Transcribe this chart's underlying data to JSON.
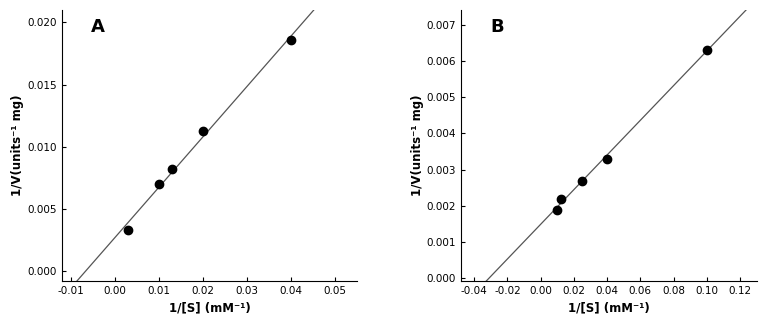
{
  "panel_A": {
    "label": "A",
    "points_x": [
      0.003,
      0.01,
      0.013,
      0.02,
      0.04
    ],
    "points_y": [
      0.0033,
      0.007,
      0.0082,
      0.0113,
      0.0186
    ],
    "xlim": [
      -0.012,
      0.055
    ],
    "ylim": [
      -0.0008,
      0.021
    ],
    "xticks": [
      -0.01,
      0.0,
      0.01,
      0.02,
      0.03,
      0.04,
      0.05
    ],
    "yticks": [
      0.0,
      0.005,
      0.01,
      0.015,
      0.02
    ],
    "xlabel": "1/[S] (mM⁻¹)",
    "ylabel": "1/V(units⁻¹ mg)",
    "xticklabels": [
      "-0.01",
      "0.00",
      "0.01",
      "0.02",
      "0.03",
      "0.04",
      "0.05"
    ],
    "yticklabels": [
      "0.000",
      "0.005",
      "0.010",
      "0.015",
      "0.020"
    ]
  },
  "panel_B": {
    "label": "B",
    "points_x": [
      0.01,
      0.012,
      0.025,
      0.04,
      0.1
    ],
    "points_y": [
      0.0019,
      0.0022,
      0.0027,
      0.0033,
      0.0063
    ],
    "xlim": [
      -0.048,
      0.13
    ],
    "ylim": [
      -8e-05,
      0.0074
    ],
    "xticks": [
      -0.04,
      -0.02,
      0.0,
      0.02,
      0.04,
      0.06,
      0.08,
      0.1,
      0.12
    ],
    "yticks": [
      0.0,
      0.001,
      0.002,
      0.003,
      0.004,
      0.005,
      0.006,
      0.007
    ],
    "xlabel": "1/[S] (mM⁻¹)",
    "ylabel": "1/V(units⁻¹ mg)",
    "xticklabels": [
      "-0.04",
      "-0.02",
      "0.00",
      "0.02",
      "0.04",
      "0.06",
      "0.08",
      "0.10",
      "0.12"
    ],
    "yticklabels": [
      "0.000",
      "0.001",
      "0.002",
      "0.003",
      "0.004",
      "0.005",
      "0.006",
      "0.007"
    ]
  },
  "line_color": "#555555",
  "point_color": "#000000",
  "marker_size": 6,
  "tick_font_size": 7.5,
  "label_font_size": 8.5,
  "panel_label_font_size": 13
}
